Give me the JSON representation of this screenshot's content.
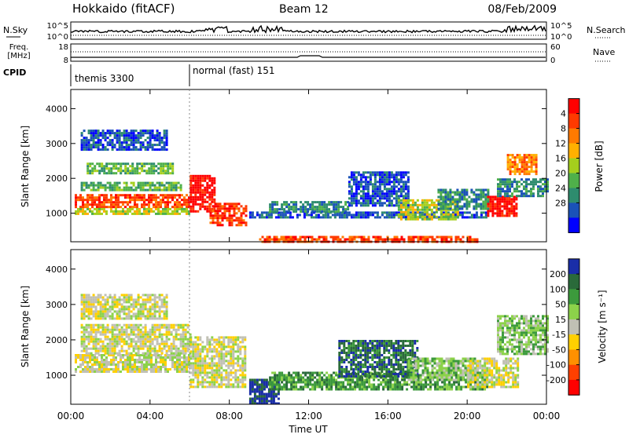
{
  "header": {
    "title": "Hokkaido (fitACF)",
    "beam": "Beam 12",
    "date": "08/Feb/2009"
  },
  "summary": {
    "nsky_label": "N.Sky",
    "nsearch_label": "N.Search",
    "nsky_ticks": [
      "10^5",
      "10^0"
    ],
    "freq_label_1": "Freq.",
    "freq_label_2": "[MHz]",
    "freq_ticks": [
      "18",
      "8"
    ],
    "nave_label": "Nave",
    "nave_ticks": [
      "60",
      "0"
    ],
    "cpid_label": "CPID",
    "cpid_segments": [
      {
        "name": "themis 3300",
        "start_h": 0,
        "end_h": 6
      },
      {
        "name": "normal (fast) 151",
        "start_h": 6,
        "end_h": 24
      }
    ]
  },
  "chart_data": [
    {
      "type": "heatmap",
      "name": "power",
      "ylabel": "Slant Range [km]",
      "xlabel": "Time UT",
      "xlim": [
        0,
        24
      ],
      "ylim": [
        180,
        4550
      ],
      "yticks": [
        1000,
        2000,
        3000,
        4000
      ],
      "colorbar": {
        "label": "Power [dB]",
        "ticks": [
          4,
          8,
          12,
          16,
          20,
          24,
          28
        ],
        "colors": [
          "#0000ff",
          "#1a52b8",
          "#2e8c6e",
          "#4fb04a",
          "#a5cf1d",
          "#ffb000",
          "#ff7a00",
          "#ff3a00",
          "#ff0000"
        ]
      },
      "regions": [
        {
          "x": [
            0.2,
            6.0
          ],
          "y": [
            1150,
            1550
          ],
          "level": 7
        },
        {
          "x": [
            0.2,
            6.0
          ],
          "y": [
            950,
            1150
          ],
          "level": 4
        },
        {
          "x": [
            0.5,
            5.5
          ],
          "y": [
            1650,
            1900
          ],
          "level": 3
        },
        {
          "x": [
            0.8,
            5.2
          ],
          "y": [
            2150,
            2450
          ],
          "level": 3
        },
        {
          "x": [
            0.5,
            4.8
          ],
          "y": [
            2800,
            3400
          ],
          "level": 1
        },
        {
          "x": [
            6.0,
            7.3
          ],
          "y": [
            1050,
            2100
          ],
          "level": 8
        },
        {
          "x": [
            7.0,
            8.8
          ],
          "y": [
            650,
            1300
          ],
          "level": 7
        },
        {
          "x": [
            9.0,
            21.0
          ],
          "y": [
            850,
            1050
          ],
          "level": 1
        },
        {
          "x": [
            9.5,
            20.5
          ],
          "y": [
            200,
            350
          ],
          "level": 7
        },
        {
          "x": [
            10.0,
            14.0
          ],
          "y": [
            1050,
            1350
          ],
          "level": 2
        },
        {
          "x": [
            14.0,
            17.0
          ],
          "y": [
            1200,
            2200
          ],
          "level": 1
        },
        {
          "x": [
            16.5,
            19.5
          ],
          "y": [
            850,
            1400
          ],
          "level": 4
        },
        {
          "x": [
            18.5,
            21.0
          ],
          "y": [
            1150,
            1700
          ],
          "level": 2
        },
        {
          "x": [
            21.0,
            22.5
          ],
          "y": [
            950,
            1500
          ],
          "level": 8
        },
        {
          "x": [
            21.5,
            24.0
          ],
          "y": [
            1500,
            2000
          ],
          "level": 2
        },
        {
          "x": [
            22.0,
            23.5
          ],
          "y": [
            2100,
            2700
          ],
          "level": 6
        }
      ]
    },
    {
      "type": "heatmap",
      "name": "velocity",
      "ylabel": "Slant Range [km]",
      "xlabel": "Time UT",
      "xlim": [
        0,
        24
      ],
      "ylim": [
        180,
        4550
      ],
      "yticks": [
        1000,
        2000,
        3000,
        4000
      ],
      "xticks": [
        "00:00",
        "04:00",
        "08:00",
        "12:00",
        "16:00",
        "20:00",
        "00:00"
      ],
      "colorbar": {
        "label": "Velocity [m s⁻¹]",
        "ticks": [
          200,
          100,
          50,
          15,
          -15,
          -50,
          -100,
          -200
        ],
        "colors": [
          "#1a2ea8",
          "#2a6a3a",
          "#3c9a3c",
          "#8cd24a",
          "#c0c0b4",
          "#ffd000",
          "#ff9000",
          "#ff4000",
          "#ff0000"
        ]
      },
      "regions": [
        {
          "x": [
            0.2,
            6.0
          ],
          "y": [
            1100,
            1600
          ],
          "level": 4
        },
        {
          "x": [
            0.5,
            6.0
          ],
          "y": [
            1650,
            2450
          ],
          "level": 4
        },
        {
          "x": [
            0.5,
            4.8
          ],
          "y": [
            2600,
            3300
          ],
          "level": 4
        },
        {
          "x": [
            6.0,
            8.8
          ],
          "y": [
            700,
            2100
          ],
          "level": 4
        },
        {
          "x": [
            9.0,
            10.5
          ],
          "y": [
            200,
            900
          ],
          "level": 0
        },
        {
          "x": [
            10.0,
            21.0
          ],
          "y": [
            600,
            1100
          ],
          "level": 2
        },
        {
          "x": [
            13.5,
            17.5
          ],
          "y": [
            1000,
            2000
          ],
          "level": 1
        },
        {
          "x": [
            17.0,
            20.5
          ],
          "y": [
            900,
            1500
          ],
          "level": 3
        },
        {
          "x": [
            20.0,
            22.5
          ],
          "y": [
            650,
            1500
          ],
          "level": 4
        },
        {
          "x": [
            21.5,
            24.0
          ],
          "y": [
            1600,
            2700
          ],
          "level": 3
        }
      ]
    }
  ]
}
